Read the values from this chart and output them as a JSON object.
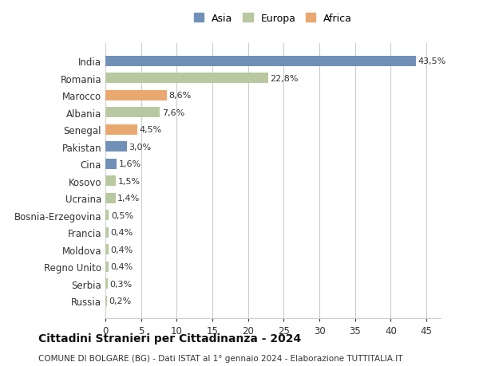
{
  "categories": [
    "Russia",
    "Serbia",
    "Regno Unito",
    "Moldova",
    "Francia",
    "Bosnia-Erzegovina",
    "Ucraina",
    "Kosovo",
    "Cina",
    "Pakistan",
    "Senegal",
    "Albania",
    "Marocco",
    "Romania",
    "India"
  ],
  "values": [
    0.2,
    0.3,
    0.4,
    0.4,
    0.4,
    0.5,
    1.4,
    1.5,
    1.6,
    3.0,
    4.5,
    7.6,
    8.6,
    22.8,
    43.5
  ],
  "labels": [
    "0,2%",
    "0,3%",
    "0,4%",
    "0,4%",
    "0,4%",
    "0,5%",
    "1,4%",
    "1,5%",
    "1,6%",
    "3,0%",
    "4,5%",
    "7,6%",
    "8,6%",
    "22,8%",
    "43,5%"
  ],
  "colors": [
    "#b8c8a0",
    "#b8c8a0",
    "#b8c8a0",
    "#b8c8a0",
    "#b8c8a0",
    "#b8c8a0",
    "#b8c8a0",
    "#b8c8a0",
    "#7090b8",
    "#7090b8",
    "#e8a870",
    "#b8c8a0",
    "#e8a870",
    "#b8c8a0",
    "#7090b8"
  ],
  "continent": [
    "Europa",
    "Europa",
    "Europa",
    "Europa",
    "Europa",
    "Europa",
    "Europa",
    "Europa",
    "Asia",
    "Asia",
    "Africa",
    "Europa",
    "Africa",
    "Europa",
    "Asia"
  ],
  "legend_labels": [
    "Asia",
    "Europa",
    "Africa"
  ],
  "legend_colors": [
    "#7090b8",
    "#b8c8a0",
    "#e8a870"
  ],
  "title1": "Cittadini Stranieri per Cittadinanza - 2024",
  "title2": "COMUNE DI BOLGARE (BG) - Dati ISTAT al 1° gennaio 2024 - Elaborazione TUTTITALIA.IT",
  "xlim": [
    0,
    47
  ],
  "xticks": [
    0,
    5,
    10,
    15,
    20,
    25,
    30,
    35,
    40,
    45
  ],
  "background_color": "#ffffff",
  "grid_color": "#cccccc"
}
